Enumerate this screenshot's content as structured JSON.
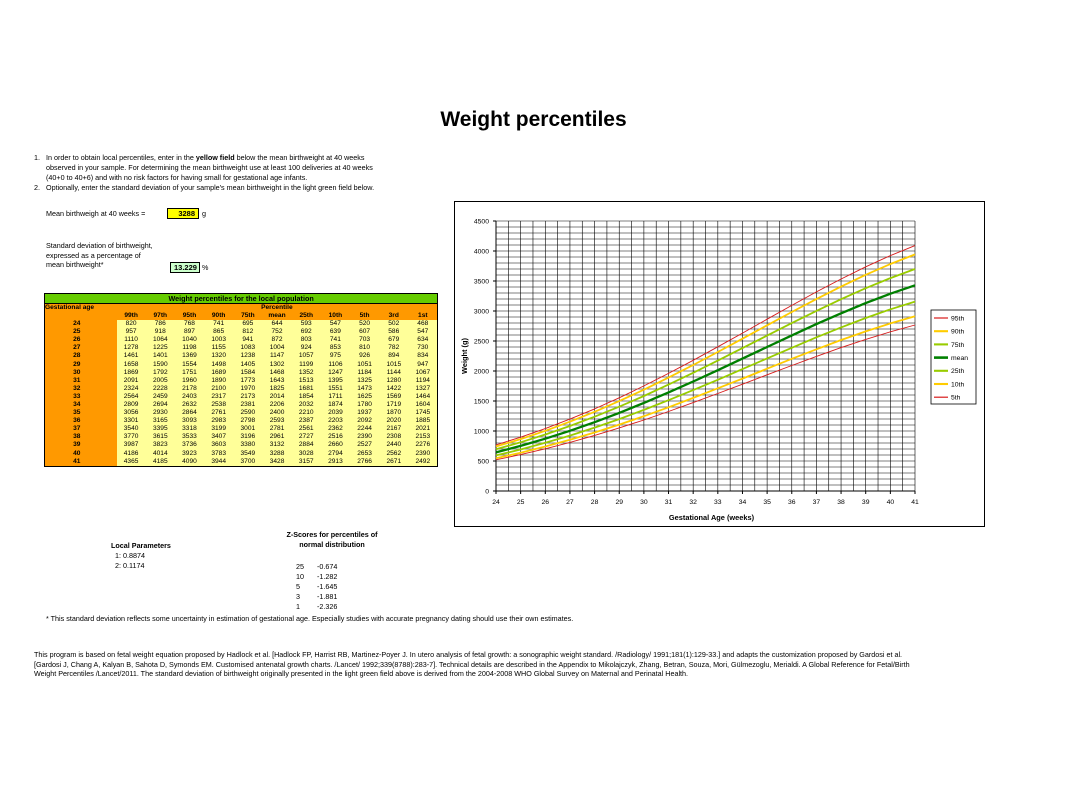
{
  "title": "Weight percentiles",
  "instructions": {
    "item1_num": "1.",
    "item1_a": "In order to obtain local percentiles, enter in the ",
    "item1_b": "yellow field",
    "item1_c": " below the mean birthweight at 40 weeks",
    "item1_line2": "observed in your sample. For determining the mean birthweight use at least 100 deliveries at 40 weeks",
    "item1_line3": "(40+0 to 40+6) and with no risk factors for having small for gestational age infants.",
    "item2_num": "2.",
    "item2": "Optionally, enter the standard deviation of your sample's mean birthweight in the light green field below."
  },
  "inputs": {
    "mean_label": "Mean birthweigh at 40 weeks =",
    "mean_value": "3288",
    "mean_unit": "g",
    "sd_label_1": "Standard deviation of birthweight,",
    "sd_label_2": "expressed as a percentage of",
    "sd_label_3": "mean birthweight*",
    "sd_value": "13.229",
    "sd_unit": "%"
  },
  "table": {
    "banner": "Weight percentiles for the local population",
    "age_header": "Gestational age",
    "percentile_header": "Percentile",
    "columns": [
      "99th",
      "97th",
      "95th",
      "90th",
      "75th",
      "mean",
      "25th",
      "10th",
      "5th",
      "3rd",
      "1st"
    ],
    "rows": [
      {
        "age": "24",
        "values": [
          "820",
          "786",
          "768",
          "741",
          "695",
          "644",
          "593",
          "547",
          "520",
          "502",
          "468"
        ]
      },
      {
        "age": "25",
        "values": [
          "957",
          "918",
          "897",
          "865",
          "812",
          "752",
          "692",
          "639",
          "607",
          "586",
          "547"
        ]
      },
      {
        "age": "26",
        "values": [
          "1110",
          "1064",
          "1040",
          "1003",
          "941",
          "872",
          "803",
          "741",
          "703",
          "679",
          "634"
        ]
      },
      {
        "age": "27",
        "values": [
          "1278",
          "1225",
          "1198",
          "1155",
          "1083",
          "1004",
          "924",
          "853",
          "810",
          "782",
          "730"
        ]
      },
      {
        "age": "28",
        "values": [
          "1461",
          "1401",
          "1369",
          "1320",
          "1238",
          "1147",
          "1057",
          "975",
          "926",
          "894",
          "834"
        ]
      },
      {
        "age": "29",
        "values": [
          "1658",
          "1590",
          "1554",
          "1498",
          "1405",
          "1302",
          "1199",
          "1106",
          "1051",
          "1015",
          "947"
        ]
      },
      {
        "age": "30",
        "values": [
          "1869",
          "1792",
          "1751",
          "1689",
          "1584",
          "1468",
          "1352",
          "1247",
          "1184",
          "1144",
          "1067"
        ]
      },
      {
        "age": "31",
        "values": [
          "2091",
          "2005",
          "1960",
          "1890",
          "1773",
          "1643",
          "1513",
          "1395",
          "1325",
          "1280",
          "1194"
        ]
      },
      {
        "age": "32",
        "values": [
          "2324",
          "2228",
          "2178",
          "2100",
          "1970",
          "1825",
          "1681",
          "1551",
          "1473",
          "1422",
          "1327"
        ]
      },
      {
        "age": "33",
        "values": [
          "2564",
          "2459",
          "2403",
          "2317",
          "2173",
          "2014",
          "1854",
          "1711",
          "1625",
          "1569",
          "1464"
        ]
      },
      {
        "age": "34",
        "values": [
          "2809",
          "2694",
          "2632",
          "2538",
          "2381",
          "2206",
          "2032",
          "1874",
          "1780",
          "1719",
          "1604"
        ]
      },
      {
        "age": "35",
        "values": [
          "3056",
          "2930",
          "2864",
          "2761",
          "2590",
          "2400",
          "2210",
          "2039",
          "1937",
          "1870",
          "1745"
        ]
      },
      {
        "age": "36",
        "values": [
          "3301",
          "3165",
          "3093",
          "2983",
          "2798",
          "2593",
          "2387",
          "2203",
          "2092",
          "2020",
          "1885"
        ]
      },
      {
        "age": "37",
        "values": [
          "3540",
          "3395",
          "3318",
          "3199",
          "3001",
          "2781",
          "2561",
          "2362",
          "2244",
          "2167",
          "2021"
        ]
      },
      {
        "age": "38",
        "values": [
          "3770",
          "3615",
          "3533",
          "3407",
          "3196",
          "2961",
          "2727",
          "2516",
          "2390",
          "2308",
          "2153"
        ]
      },
      {
        "age": "39",
        "values": [
          "3987",
          "3823",
          "3736",
          "3603",
          "3380",
          "3132",
          "2884",
          "2660",
          "2527",
          "2440",
          "2276"
        ]
      },
      {
        "age": "40",
        "values": [
          "4186",
          "4014",
          "3923",
          "3783",
          "3549",
          "3288",
          "3028",
          "2794",
          "2653",
          "2562",
          "2390"
        ]
      },
      {
        "age": "41",
        "values": [
          "4365",
          "4185",
          "4090",
          "3944",
          "3700",
          "3428",
          "3157",
          "2913",
          "2766",
          "2671",
          "2492"
        ]
      }
    ]
  },
  "local_params": {
    "title": "Local Parameters",
    "items": [
      {
        "k": "1:",
        "v": "0.8874"
      },
      {
        "k": "2:",
        "v": "0.1174"
      }
    ]
  },
  "zscores": {
    "title_1": "Z-Scores for percentiles of",
    "title_2": "normal distribution",
    "rows": [
      {
        "p": "25",
        "z": "-0.674"
      },
      {
        "p": "10",
        "z": "-1.282"
      },
      {
        "p": "5",
        "z": "-1.645"
      },
      {
        "p": "3",
        "z": "-1.881"
      },
      {
        "p": "1",
        "z": "-2.326"
      }
    ]
  },
  "footnote": "* This standard deviation reflects some uncertainty in estimation of gestational age. Especially studies with accurate pregnancy dating should use their own estimates.",
  "references": {
    "line1": "This program is based on fetal weight equation proposed by Hadlock et al. [Hadlock FP, Harrist RB, Martinez-Poyer J. In utero analysis of fetal growth: a sonographic weight standard. /Radiology/ 1991;181(1):129-33.] and adapts the customization proposed by Gardosi et al.",
    "line2": "[Gardosi J, Chang A, Kalyan B, Sahota D, Symonds EM. Customised antenatal growth charts. /Lancet/ 1992;339(8788):283-7]. Technical details are described in the Appendix to Mikolajczyk, Zhang, Betran, Souza, Mori, Gülmezoglu, Merialdi. A Global Reference for Fetal/Birth",
    "line3": "Weight Percentiles /Lancet/2011. The standard deviation of birthweight originally presented in the light green field above is derived from the 2004-2008 WHO Global Survey on Maternal and Perinatal Health."
  },
  "chart_data": {
    "type": "line",
    "title": "",
    "xlabel": "Gestational Age (weeks)",
    "ylabel": "Weight (g)",
    "xlim": [
      24,
      41
    ],
    "ylim": [
      0,
      4500
    ],
    "x": [
      24,
      25,
      26,
      27,
      28,
      29,
      30,
      31,
      32,
      33,
      34,
      35,
      36,
      37,
      38,
      39,
      40,
      41
    ],
    "yticks": [
      0,
      500,
      1000,
      1500,
      2000,
      2500,
      3000,
      3500,
      4000,
      4500
    ],
    "grid": true,
    "legend_position": "right",
    "series": [
      {
        "name": "95th",
        "color": "#d81b1b",
        "width": 0.9,
        "values": [
          768,
          897,
          1040,
          1198,
          1369,
          1554,
          1751,
          1960,
          2178,
          2403,
          2632,
          2864,
          3093,
          3318,
          3533,
          3736,
          3923,
          4090
        ]
      },
      {
        "name": "90th",
        "color": "#ffcc00",
        "width": 1.8,
        "values": [
          741,
          865,
          1003,
          1155,
          1320,
          1498,
          1689,
          1890,
          2100,
          2317,
          2538,
          2761,
          2983,
          3199,
          3407,
          3603,
          3783,
          3944
        ]
      },
      {
        "name": "75th",
        "color": "#99cc00",
        "width": 1.8,
        "values": [
          695,
          812,
          941,
          1083,
          1238,
          1405,
          1584,
          1773,
          1970,
          2173,
          2381,
          2590,
          2798,
          3001,
          3196,
          3380,
          3549,
          3700
        ]
      },
      {
        "name": "mean",
        "color": "#008000",
        "width": 2.3,
        "values": [
          644,
          752,
          872,
          1004,
          1147,
          1302,
          1468,
          1643,
          1825,
          2014,
          2206,
          2400,
          2593,
          2781,
          2961,
          3132,
          3288,
          3428
        ]
      },
      {
        "name": "25th",
        "color": "#99cc00",
        "width": 1.8,
        "values": [
          593,
          692,
          803,
          924,
          1057,
          1199,
          1352,
          1513,
          1681,
          1854,
          2032,
          2210,
          2387,
          2561,
          2727,
          2884,
          3028,
          3157
        ]
      },
      {
        "name": "10th",
        "color": "#ffcc00",
        "width": 1.8,
        "values": [
          547,
          639,
          741,
          853,
          975,
          1106,
          1247,
          1395,
          1551,
          1711,
          1874,
          2039,
          2203,
          2362,
          2516,
          2660,
          2794,
          2913
        ]
      },
      {
        "name": "5th",
        "color": "#d81b1b",
        "width": 0.9,
        "values": [
          520,
          607,
          703,
          810,
          926,
          1051,
          1184,
          1325,
          1473,
          1625,
          1780,
          1937,
          2092,
          2244,
          2390,
          2527,
          2653,
          2766
        ]
      }
    ]
  }
}
